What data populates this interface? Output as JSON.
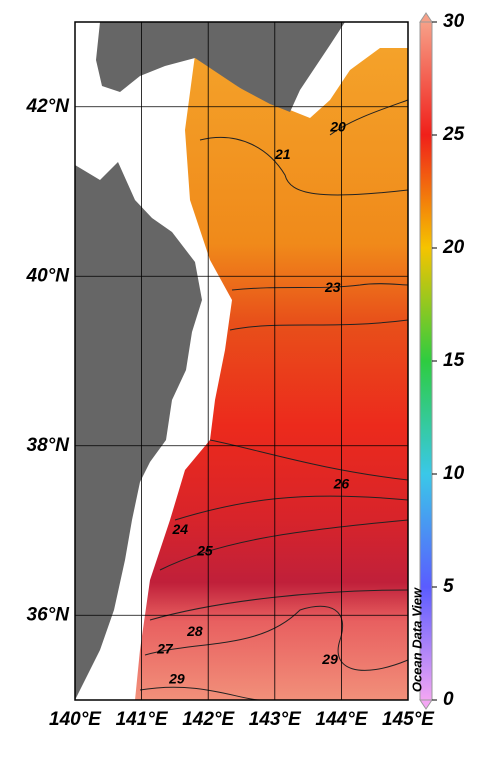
{
  "chart_data": {
    "type": "map",
    "xlim": [
      140,
      145
    ],
    "ylim": [
      35,
      43
    ],
    "xticks": [
      {
        "value": 140,
        "label": "140°E"
      },
      {
        "value": 141,
        "label": "141°E"
      },
      {
        "value": 142,
        "label": "142°E"
      },
      {
        "value": 143,
        "label": "143°E"
      },
      {
        "value": 144,
        "label": "144°E"
      },
      {
        "value": 145,
        "label": "145°E"
      }
    ],
    "yticks": [
      {
        "value": 36,
        "label": "36°N"
      },
      {
        "value": 38,
        "label": "38°N"
      },
      {
        "value": 40,
        "label": "40°N"
      },
      {
        "value": 42,
        "label": "42°N"
      }
    ],
    "grid": true,
    "contour_labels": [
      {
        "value": 20,
        "x": 143.95,
        "y": 41.75
      },
      {
        "value": 21,
        "x": 143.12,
        "y": 41.43
      },
      {
        "value": 23,
        "x": 143.87,
        "y": 39.86
      },
      {
        "value": 26,
        "x": 144.0,
        "y": 37.54
      },
      {
        "value": 24,
        "x": 141.58,
        "y": 37.0
      },
      {
        "value": 25,
        "x": 141.95,
        "y": 36.75
      },
      {
        "value": 28,
        "x": 141.8,
        "y": 35.8
      },
      {
        "value": 27,
        "x": 141.35,
        "y": 35.59
      },
      {
        "value": 29,
        "x": 143.83,
        "y": 35.47
      },
      {
        "value": 29,
        "x": 141.53,
        "y": 35.24
      }
    ],
    "colorbar": {
      "lim": [
        0,
        30
      ],
      "ticks": [
        0,
        5,
        10,
        15,
        20,
        25,
        30
      ],
      "colors": [
        "#f3a6f3",
        "#5a5cff",
        "#3ac8e8",
        "#2ecc40",
        "#f5c400",
        "#f0201a",
        "#f7a088"
      ]
    },
    "credit": "Ocean Data View"
  }
}
